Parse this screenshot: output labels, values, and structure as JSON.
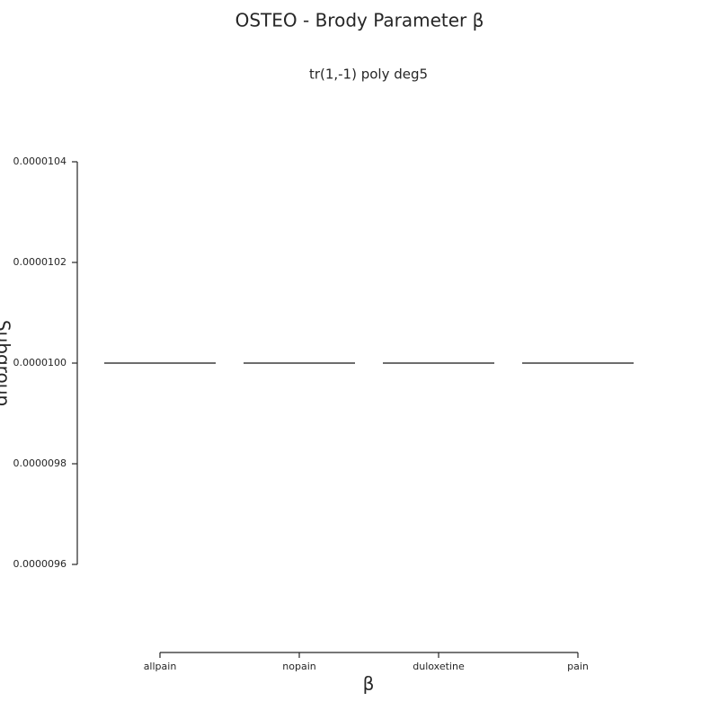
{
  "chart_data": {
    "type": "box",
    "title": "OSTEO - Brody Parameter β",
    "subtitle": "tr(1,-1) poly deg5",
    "x_label": "β",
    "y_label": "Subgroup",
    "categories": [
      "allpain",
      "nopain",
      "duloxetine",
      "pain"
    ],
    "values": [
      1e-05,
      1e-05,
      1e-05,
      1e-05
    ],
    "color": "#3d3d3d",
    "ylim": [
      9.425e-06,
      1.05e-05
    ],
    "yticks": [
      {
        "value": 9.6e-06,
        "label": "0.0000096"
      },
      {
        "value": 9.8e-06,
        "label": "0.0000098"
      },
      {
        "value": 1e-05,
        "label": "0.0000100"
      },
      {
        "value": 1.02e-05,
        "label": "0.0000102"
      },
      {
        "value": 1.04e-05,
        "label": "0.0000104"
      }
    ],
    "grid": false
  }
}
